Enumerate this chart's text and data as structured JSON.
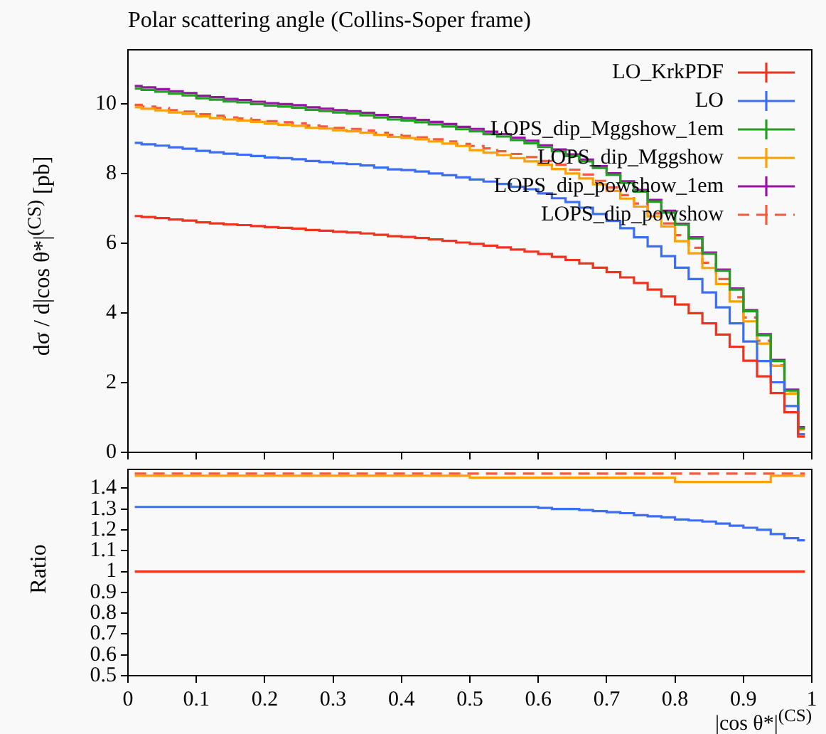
{
  "chart_data": [
    {
      "type": "step",
      "title": "Polar scattering angle (Collins-Soper frame)",
      "ylabel": "dσ / d|cos θ*|$^{(CS)}$ [pb]",
      "legend": "top right",
      "tick_labels": "y",
      "x": [
        0.01,
        0.03,
        0.05,
        0.07,
        0.09,
        0.11,
        0.13,
        0.15,
        0.17,
        0.19,
        0.21,
        0.23,
        0.25,
        0.27,
        0.29,
        0.31,
        0.33,
        0.35,
        0.37,
        0.39,
        0.41,
        0.43,
        0.45,
        0.47,
        0.49,
        0.51,
        0.53,
        0.55,
        0.57,
        0.59,
        0.61,
        0.63,
        0.65,
        0.67,
        0.69,
        0.71,
        0.73,
        0.75,
        0.77,
        0.79,
        0.81,
        0.83,
        0.85,
        0.87,
        0.89,
        0.91,
        0.93,
        0.95,
        0.97,
        0.99
      ],
      "xlim": [
        0,
        1
      ],
      "xticks": [
        0,
        0.1,
        0.2,
        0.3,
        0.4,
        0.5,
        0.6,
        0.7,
        0.8,
        0.9,
        1
      ],
      "ylim": [
        0,
        11.55
      ],
      "yticks": [
        0,
        2,
        4,
        6,
        8,
        10
      ],
      "series": [
        {
          "name": "LO_KrkPDF",
          "color": "#f0321e",
          "values": [
            6.78,
            6.75,
            6.72,
            6.68,
            6.65,
            6.6,
            6.57,
            6.54,
            6.52,
            6.49,
            6.46,
            6.44,
            6.42,
            6.38,
            6.36,
            6.33,
            6.31,
            6.28,
            6.24,
            6.2,
            6.18,
            6.15,
            6.11,
            6.07,
            6.02,
            5.98,
            5.93,
            5.88,
            5.82,
            5.76,
            5.69,
            5.61,
            5.52,
            5.42,
            5.3,
            5.17,
            5.02,
            4.86,
            4.67,
            4.47,
            4.24,
            3.99,
            3.7,
            3.38,
            3.03,
            2.63,
            2.18,
            1.7,
            1.15,
            0.45
          ]
        },
        {
          "name": "LO",
          "color": "#3c6ef5",
          "values": [
            8.88,
            8.84,
            8.8,
            8.75,
            8.71,
            8.65,
            8.61,
            8.57,
            8.54,
            8.5,
            8.46,
            8.44,
            8.41,
            8.36,
            8.33,
            8.29,
            8.27,
            8.23,
            8.17,
            8.12,
            8.1,
            8.06,
            8.0,
            7.95,
            7.89,
            7.83,
            7.77,
            7.7,
            7.62,
            7.55,
            7.43,
            7.29,
            7.18,
            7.02,
            6.84,
            6.64,
            6.43,
            6.17,
            5.91,
            5.63,
            5.3,
            4.97,
            4.59,
            4.16,
            3.7,
            3.18,
            2.62,
            2.01,
            1.33,
            0.52
          ]
        },
        {
          "name": "LOPS_dip_Mggshow_1em",
          "color": "#22a022",
          "values": [
            10.44,
            10.4,
            10.35,
            10.29,
            10.24,
            10.16,
            10.12,
            10.07,
            10.04,
            9.99,
            9.95,
            9.92,
            9.89,
            9.83,
            9.79,
            9.75,
            9.72,
            9.67,
            9.61,
            9.55,
            9.52,
            9.47,
            9.41,
            9.35,
            9.27,
            9.21,
            9.13,
            9.06,
            8.96,
            8.87,
            8.76,
            8.64,
            8.5,
            8.35,
            8.16,
            7.96,
            7.73,
            7.48,
            7.19,
            6.88,
            6.53,
            6.14,
            5.7,
            5.21,
            4.67,
            4.05,
            3.36,
            2.62,
            1.77,
            0.69
          ]
        },
        {
          "name": "LOPS_dip_Mggshow",
          "color": "#ffa000",
          "values": [
            9.9,
            9.86,
            9.81,
            9.75,
            9.71,
            9.64,
            9.59,
            9.55,
            9.52,
            9.48,
            9.43,
            9.4,
            9.37,
            9.31,
            9.29,
            9.24,
            9.21,
            9.17,
            9.11,
            9.05,
            9.02,
            8.98,
            8.92,
            8.86,
            8.79,
            8.67,
            8.6,
            8.53,
            8.44,
            8.35,
            8.25,
            8.13,
            8.0,
            7.86,
            7.69,
            7.5,
            7.28,
            7.05,
            6.77,
            6.48,
            6.06,
            5.71,
            5.29,
            4.83,
            4.33,
            3.76,
            3.12,
            2.48,
            1.68,
            0.66
          ]
        },
        {
          "name": "LOPS_dip_powshow_1em",
          "color": "#9b12a8",
          "values": [
            10.51,
            10.47,
            10.42,
            10.36,
            10.31,
            10.23,
            10.19,
            10.14,
            10.11,
            10.06,
            10.02,
            9.99,
            9.96,
            9.9,
            9.86,
            9.82,
            9.79,
            9.74,
            9.68,
            9.62,
            9.59,
            9.54,
            9.48,
            9.42,
            9.34,
            9.28,
            9.2,
            9.13,
            9.03,
            8.94,
            8.81,
            8.69,
            8.55,
            8.4,
            8.21,
            8.01,
            7.78,
            7.53,
            7.24,
            6.93,
            6.56,
            6.17,
            5.73,
            5.24,
            4.7,
            4.08,
            3.39,
            2.65,
            1.8,
            0.72
          ]
        },
        {
          "name": "LOPS_dip_powshow",
          "color": "#f55a3c",
          "line_style": "dashed",
          "values": [
            9.97,
            9.92,
            9.88,
            9.82,
            9.78,
            9.7,
            9.66,
            9.61,
            9.58,
            9.54,
            9.5,
            9.47,
            9.44,
            9.38,
            9.35,
            9.31,
            9.28,
            9.23,
            9.17,
            9.11,
            9.08,
            9.04,
            8.98,
            8.92,
            8.85,
            8.79,
            8.72,
            8.64,
            8.56,
            8.47,
            8.36,
            8.25,
            8.11,
            7.97,
            7.79,
            7.6,
            7.38,
            7.14,
            6.86,
            6.57,
            6.23,
            5.87,
            5.44,
            4.97,
            4.45,
            3.87,
            3.2,
            2.5,
            1.69,
            0.66
          ]
        }
      ]
    },
    {
      "type": "step",
      "ylabel": "Ratio",
      "xlabel": "|cos θ*|$^{(CS)}$",
      "x": [
        0.01,
        0.03,
        0.05,
        0.07,
        0.09,
        0.11,
        0.13,
        0.15,
        0.17,
        0.19,
        0.21,
        0.23,
        0.25,
        0.27,
        0.29,
        0.31,
        0.33,
        0.35,
        0.37,
        0.39,
        0.41,
        0.43,
        0.45,
        0.47,
        0.49,
        0.51,
        0.53,
        0.55,
        0.57,
        0.59,
        0.61,
        0.63,
        0.65,
        0.67,
        0.69,
        0.71,
        0.73,
        0.75,
        0.77,
        0.79,
        0.81,
        0.83,
        0.85,
        0.87,
        0.89,
        0.91,
        0.93,
        0.95,
        0.97,
        0.99
      ],
      "xlim": [
        0,
        1
      ],
      "xticks": [
        0,
        0.1,
        0.2,
        0.3,
        0.4,
        0.5,
        0.6,
        0.7,
        0.8,
        0.9,
        1
      ],
      "ylim": [
        0.5,
        1.49
      ],
      "yticks": [
        0.5,
        0.6,
        0.7,
        0.8,
        0.9,
        1,
        1.1,
        1.2,
        1.3,
        1.4
      ],
      "series": [
        {
          "color": "#f0321e",
          "values": [
            1,
            1,
            1,
            1,
            1,
            1,
            1,
            1,
            1,
            1,
            1,
            1,
            1,
            1,
            1,
            1,
            1,
            1,
            1,
            1,
            1,
            1,
            1,
            1,
            1,
            1,
            1,
            1,
            1,
            1,
            1,
            1,
            1,
            1,
            1,
            1,
            1,
            1,
            1,
            1,
            1,
            1,
            1,
            1,
            1,
            1,
            1,
            1,
            1,
            1
          ]
        },
        {
          "color": "#3c6ef5",
          "values": [
            1.31,
            1.31,
            1.31,
            1.31,
            1.31,
            1.31,
            1.31,
            1.31,
            1.31,
            1.31,
            1.31,
            1.31,
            1.31,
            1.31,
            1.31,
            1.31,
            1.31,
            1.31,
            1.31,
            1.31,
            1.31,
            1.31,
            1.31,
            1.31,
            1.31,
            1.31,
            1.31,
            1.31,
            1.31,
            1.31,
            1.305,
            1.3,
            1.3,
            1.295,
            1.29,
            1.285,
            1.28,
            1.27,
            1.265,
            1.26,
            1.25,
            1.245,
            1.24,
            1.23,
            1.22,
            1.21,
            1.2,
            1.18,
            1.16,
            1.15
          ]
        },
        {
          "color": "#ffa000",
          "values": [
            1.46,
            1.46,
            1.46,
            1.46,
            1.46,
            1.46,
            1.46,
            1.46,
            1.46,
            1.46,
            1.46,
            1.46,
            1.46,
            1.46,
            1.46,
            1.46,
            1.46,
            1.46,
            1.46,
            1.46,
            1.46,
            1.46,
            1.46,
            1.46,
            1.46,
            1.45,
            1.45,
            1.45,
            1.45,
            1.45,
            1.45,
            1.45,
            1.45,
            1.45,
            1.45,
            1.45,
            1.45,
            1.45,
            1.45,
            1.45,
            1.43,
            1.43,
            1.43,
            1.43,
            1.43,
            1.43,
            1.43,
            1.46,
            1.46,
            1.46
          ]
        },
        {
          "color": "#f55a3c",
          "line_style": "dashed",
          "values": [
            1.47,
            1.47,
            1.47,
            1.47,
            1.47,
            1.47,
            1.47,
            1.47,
            1.47,
            1.47,
            1.47,
            1.47,
            1.47,
            1.47,
            1.47,
            1.47,
            1.47,
            1.47,
            1.47,
            1.47,
            1.47,
            1.47,
            1.47,
            1.47,
            1.47,
            1.47,
            1.47,
            1.47,
            1.47,
            1.47,
            1.47,
            1.47,
            1.47,
            1.47,
            1.47,
            1.47,
            1.47,
            1.47,
            1.47,
            1.47,
            1.47,
            1.47,
            1.47,
            1.47,
            1.47,
            1.47,
            1.47,
            1.47,
            1.47,
            1.47
          ]
        }
      ]
    }
  ]
}
